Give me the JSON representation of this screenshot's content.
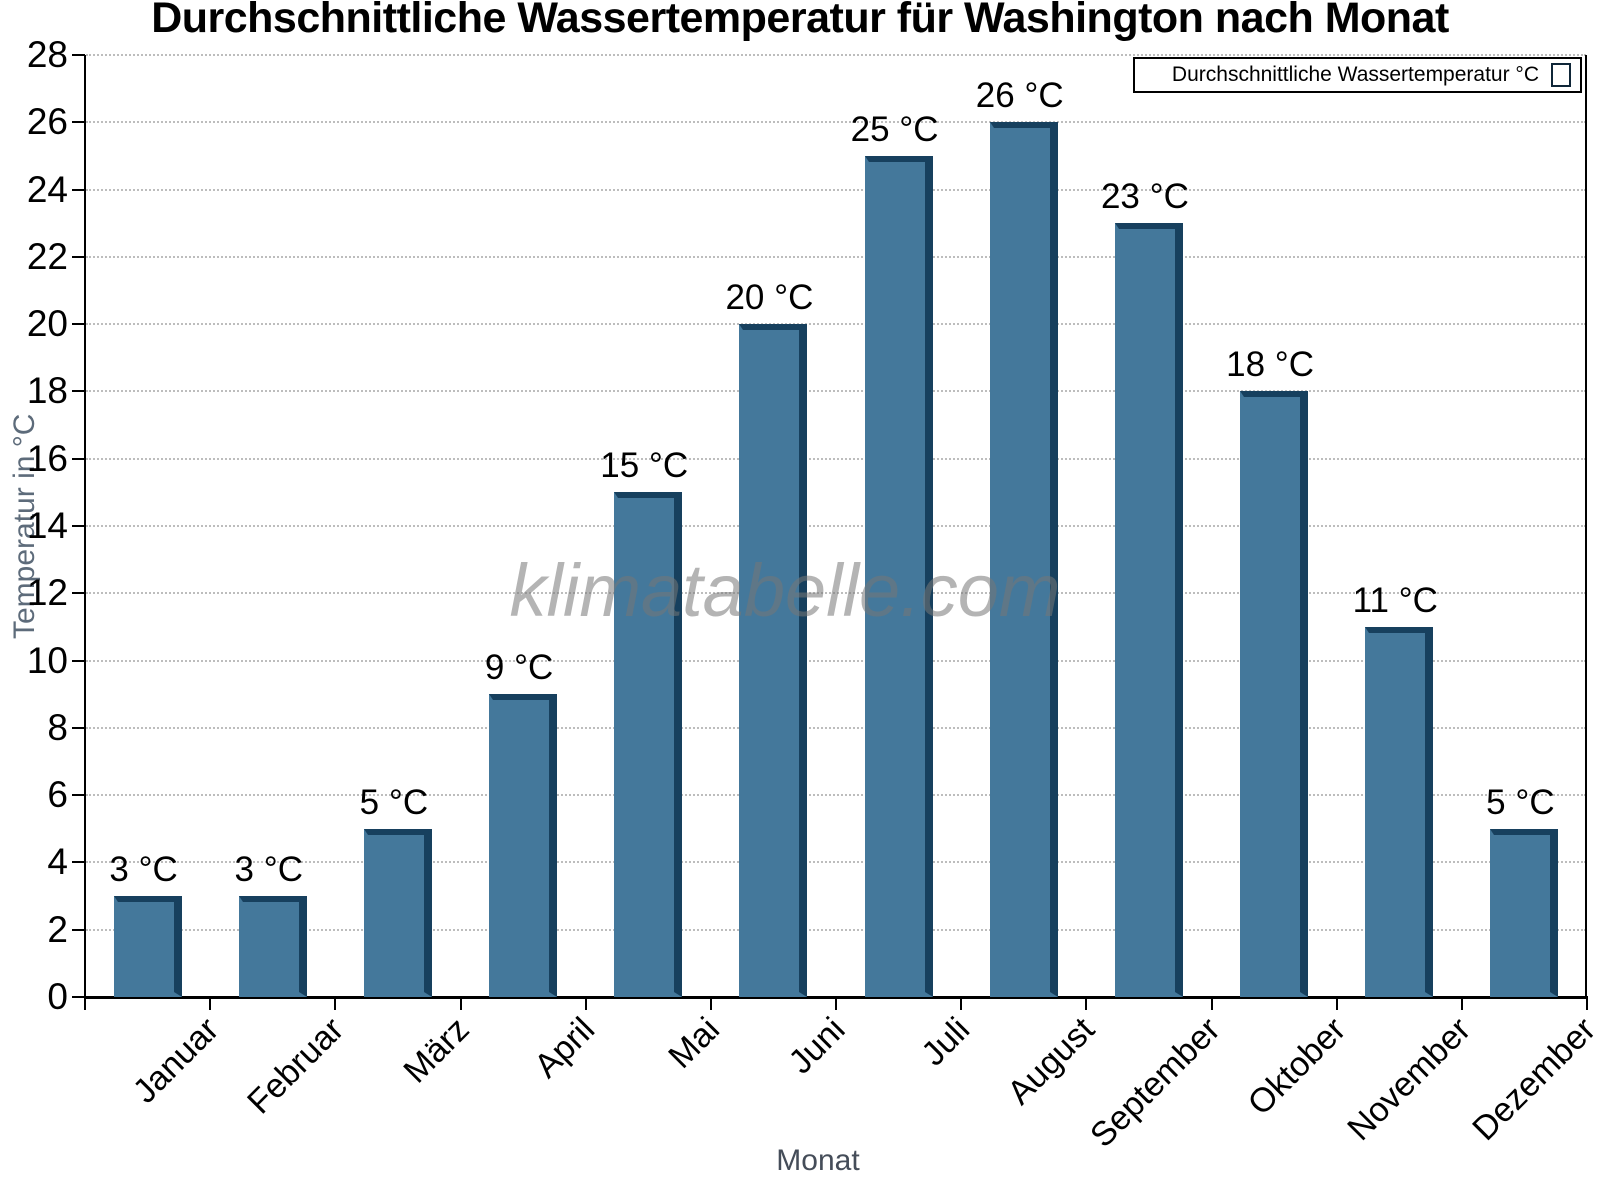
{
  "title": "Durchschnittliche Wassertemperatur für Washington nach Monat",
  "legend": {
    "label": "Durchschnittliche Wassertemperatur °C",
    "swatch_color": "#44789B"
  },
  "watermark": "klimatabelle.com",
  "chart_data": {
    "type": "bar",
    "title": "Durchschnittliche Wassertemperatur für Washington nach Monat",
    "categories": [
      "Januar",
      "Februar",
      "März",
      "April",
      "Mai",
      "Juni",
      "Juli",
      "August",
      "September",
      "Oktober",
      "November",
      "Dezember"
    ],
    "values": [
      3,
      3,
      5,
      9,
      15,
      20,
      25,
      26,
      23,
      18,
      11,
      5
    ],
    "value_labels": [
      "3 °C",
      "3 °C",
      "5 °C",
      "9 °C",
      "15 °C",
      "20 °C",
      "25 °C",
      "26 °C",
      "23 °C",
      "18 °C",
      "11 °C",
      "5 °C"
    ],
    "series": [
      {
        "name": "Durchschnittliche Wassertemperatur °C",
        "values": [
          3,
          3,
          5,
          9,
          15,
          20,
          25,
          26,
          23,
          18,
          11,
          5
        ]
      }
    ],
    "xlabel": "Monat",
    "ylabel": "Temperatur in °C",
    "ylim": [
      0,
      28
    ],
    "ytick_step": 2,
    "grid": "horizontal dotted",
    "legend_position": "top-right",
    "bar_color": "#44789B",
    "bar_edge_color": "#17405E"
  }
}
